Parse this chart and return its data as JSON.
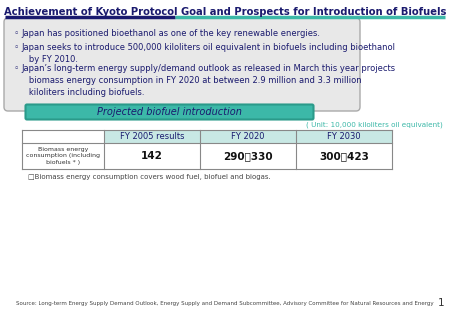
{
  "title": "Achievement of Kyoto Protocol Goal and Prospects for Introduction of Biofuels",
  "title_color": "#1a1a6e",
  "background_color": "#ffffff",
  "bullet_box_color": "#e8e8e8",
  "bullet_box_border": "#aaaaaa",
  "bullet_text_color": "#1a1a6e",
  "bullet_symbol": "◦",
  "bullet1": "Japan has positioned bioethanol as one of the key renewable energies.",
  "bullet2": "Japan seeks to introduce 500,000 kiloliters oil equivalent in biofuels including bioethanol\n   by FY 2010.",
  "bullet3": "Japan’s long-term energy supply/demand outlook as released in March this year projects\n   biomass energy consumption in FY 2020 at between 2.9 million and 3.3 million\n   kiloliters including biofuels.",
  "banner_text": "Projected biofuel introduction",
  "banner_bg": "#3cb8a8",
  "banner_border": "#2a9a8a",
  "banner_text_color": "#1a1a6e",
  "unit_text": "( Unit: 10,000 kiloliters oil equivalent)",
  "unit_color": "#3cb8a8",
  "table_headers": [
    "",
    "FY 2005 results",
    "FY 2020",
    "FY 2030"
  ],
  "table_row_label": "Biomass energy\nconsumption (including\nbiofuels * )",
  "table_values": [
    "142",
    "290～330",
    "300～423"
  ],
  "table_header_color": "#c8e8e4",
  "table_border_color": "#888888",
  "footnote": "□Biomass energy consumption covers wood fuel, biofuel and biogas.",
  "source": "Source: Long-term Energy Supply Demand Outlook, Energy Supply and Demand Subcommittee, Advisory Committee for Natural Resources and Energy",
  "page_num": "1",
  "header_line_color1": "#1a1a6e",
  "header_line_color2": "#3cb8a8"
}
